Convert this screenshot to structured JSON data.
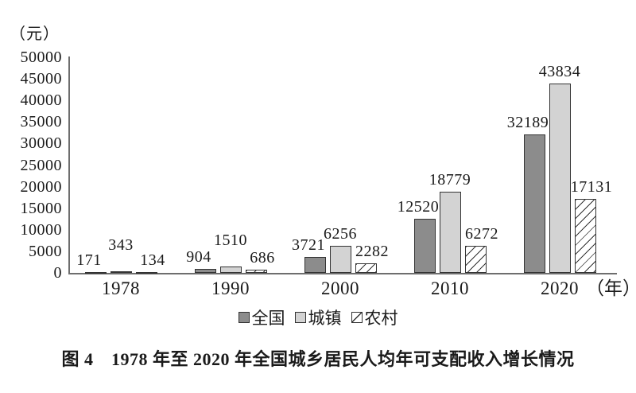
{
  "figure": {
    "unit_label": "（元）",
    "x_axis_suffix": "（年）",
    "caption": "图 4　1978 年至 2020 年全国城乡居民人均年可支配收入增长情况"
  },
  "chart_data": {
    "type": "bar",
    "title": "1978年至2020年全国城乡居民人均年可支配收入增长情况",
    "ylabel": "元",
    "xlabel": "年",
    "categories": [
      "1978",
      "1990",
      "2000",
      "2010",
      "2020"
    ],
    "series": [
      {
        "name": "全国",
        "values": [
          171,
          904,
          3721,
          12520,
          32189
        ],
        "fill": "#8c8c8c",
        "pattern": "solid"
      },
      {
        "name": "城镇",
        "values": [
          343,
          1510,
          6256,
          18779,
          43834
        ],
        "fill": "#d3d3d3",
        "pattern": "solid"
      },
      {
        "name": "农村",
        "values": [
          134,
          686,
          2282,
          6272,
          17131
        ],
        "fill": "#ffffff",
        "pattern": "diagonal-hatch"
      }
    ],
    "ylim": [
      0,
      50000
    ],
    "ytick_step": 5000,
    "grid": false,
    "legend_position": "bottom",
    "data_labels": true,
    "axis_color": "#6e6e6e",
    "bar_border_color": "#333333",
    "hatch_line_color": "#333333",
    "text_color": "#1a1a1a",
    "stagger_middle_label_groups": [
      0,
      1
    ]
  }
}
